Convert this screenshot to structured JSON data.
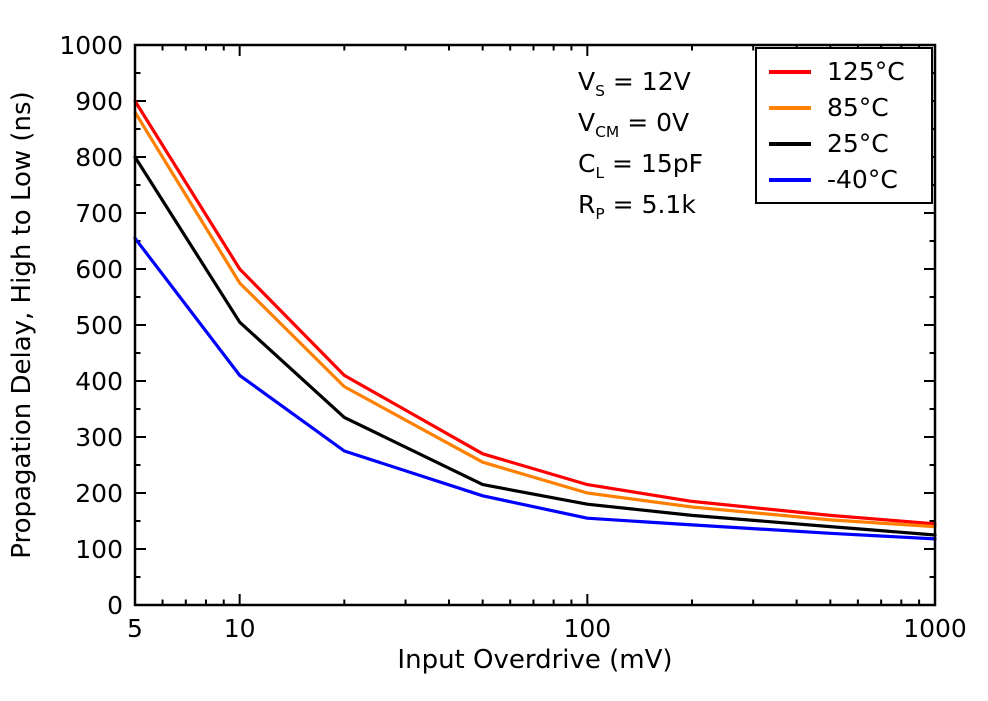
{
  "chart_data": {
    "type": "line",
    "title": "",
    "xlabel": "Input Overdrive (mV)",
    "ylabel": "Propagation Delay, High to Low (ns)",
    "x_scale": "log",
    "y_scale": "linear",
    "xlim": [
      5,
      1000
    ],
    "ylim": [
      0,
      1000
    ],
    "x_ticks": [
      5,
      10,
      100,
      1000
    ],
    "y_ticks": [
      0,
      100,
      200,
      300,
      400,
      500,
      600,
      700,
      800,
      900,
      1000
    ],
    "grid": false,
    "legend_position": "top-right",
    "x": [
      5,
      10,
      20,
      50,
      100,
      200,
      500,
      1000
    ],
    "series": [
      {
        "name": "125°C",
        "color": "#ff0000",
        "values": [
          900,
          600,
          410,
          270,
          215,
          185,
          160,
          145
        ]
      },
      {
        "name": "85°C",
        "color": "#ff8000",
        "values": [
          880,
          575,
          390,
          255,
          200,
          175,
          152,
          140
        ]
      },
      {
        "name": "25°C",
        "color": "#000000",
        "values": [
          800,
          505,
          335,
          215,
          180,
          160,
          140,
          125
        ]
      },
      {
        "name": "-40°C",
        "color": "#0000ff",
        "values": [
          655,
          410,
          275,
          195,
          155,
          143,
          128,
          118
        ]
      }
    ],
    "conditions": [
      {
        "base": "V",
        "sub": "S",
        "rest": " = 12V"
      },
      {
        "base": "V",
        "sub": "CM",
        "rest": " = 0V"
      },
      {
        "base": "C",
        "sub": "L",
        "rest": " = 15pF"
      },
      {
        "base": "R",
        "sub": "P",
        "rest": " = 5.1k"
      }
    ]
  }
}
